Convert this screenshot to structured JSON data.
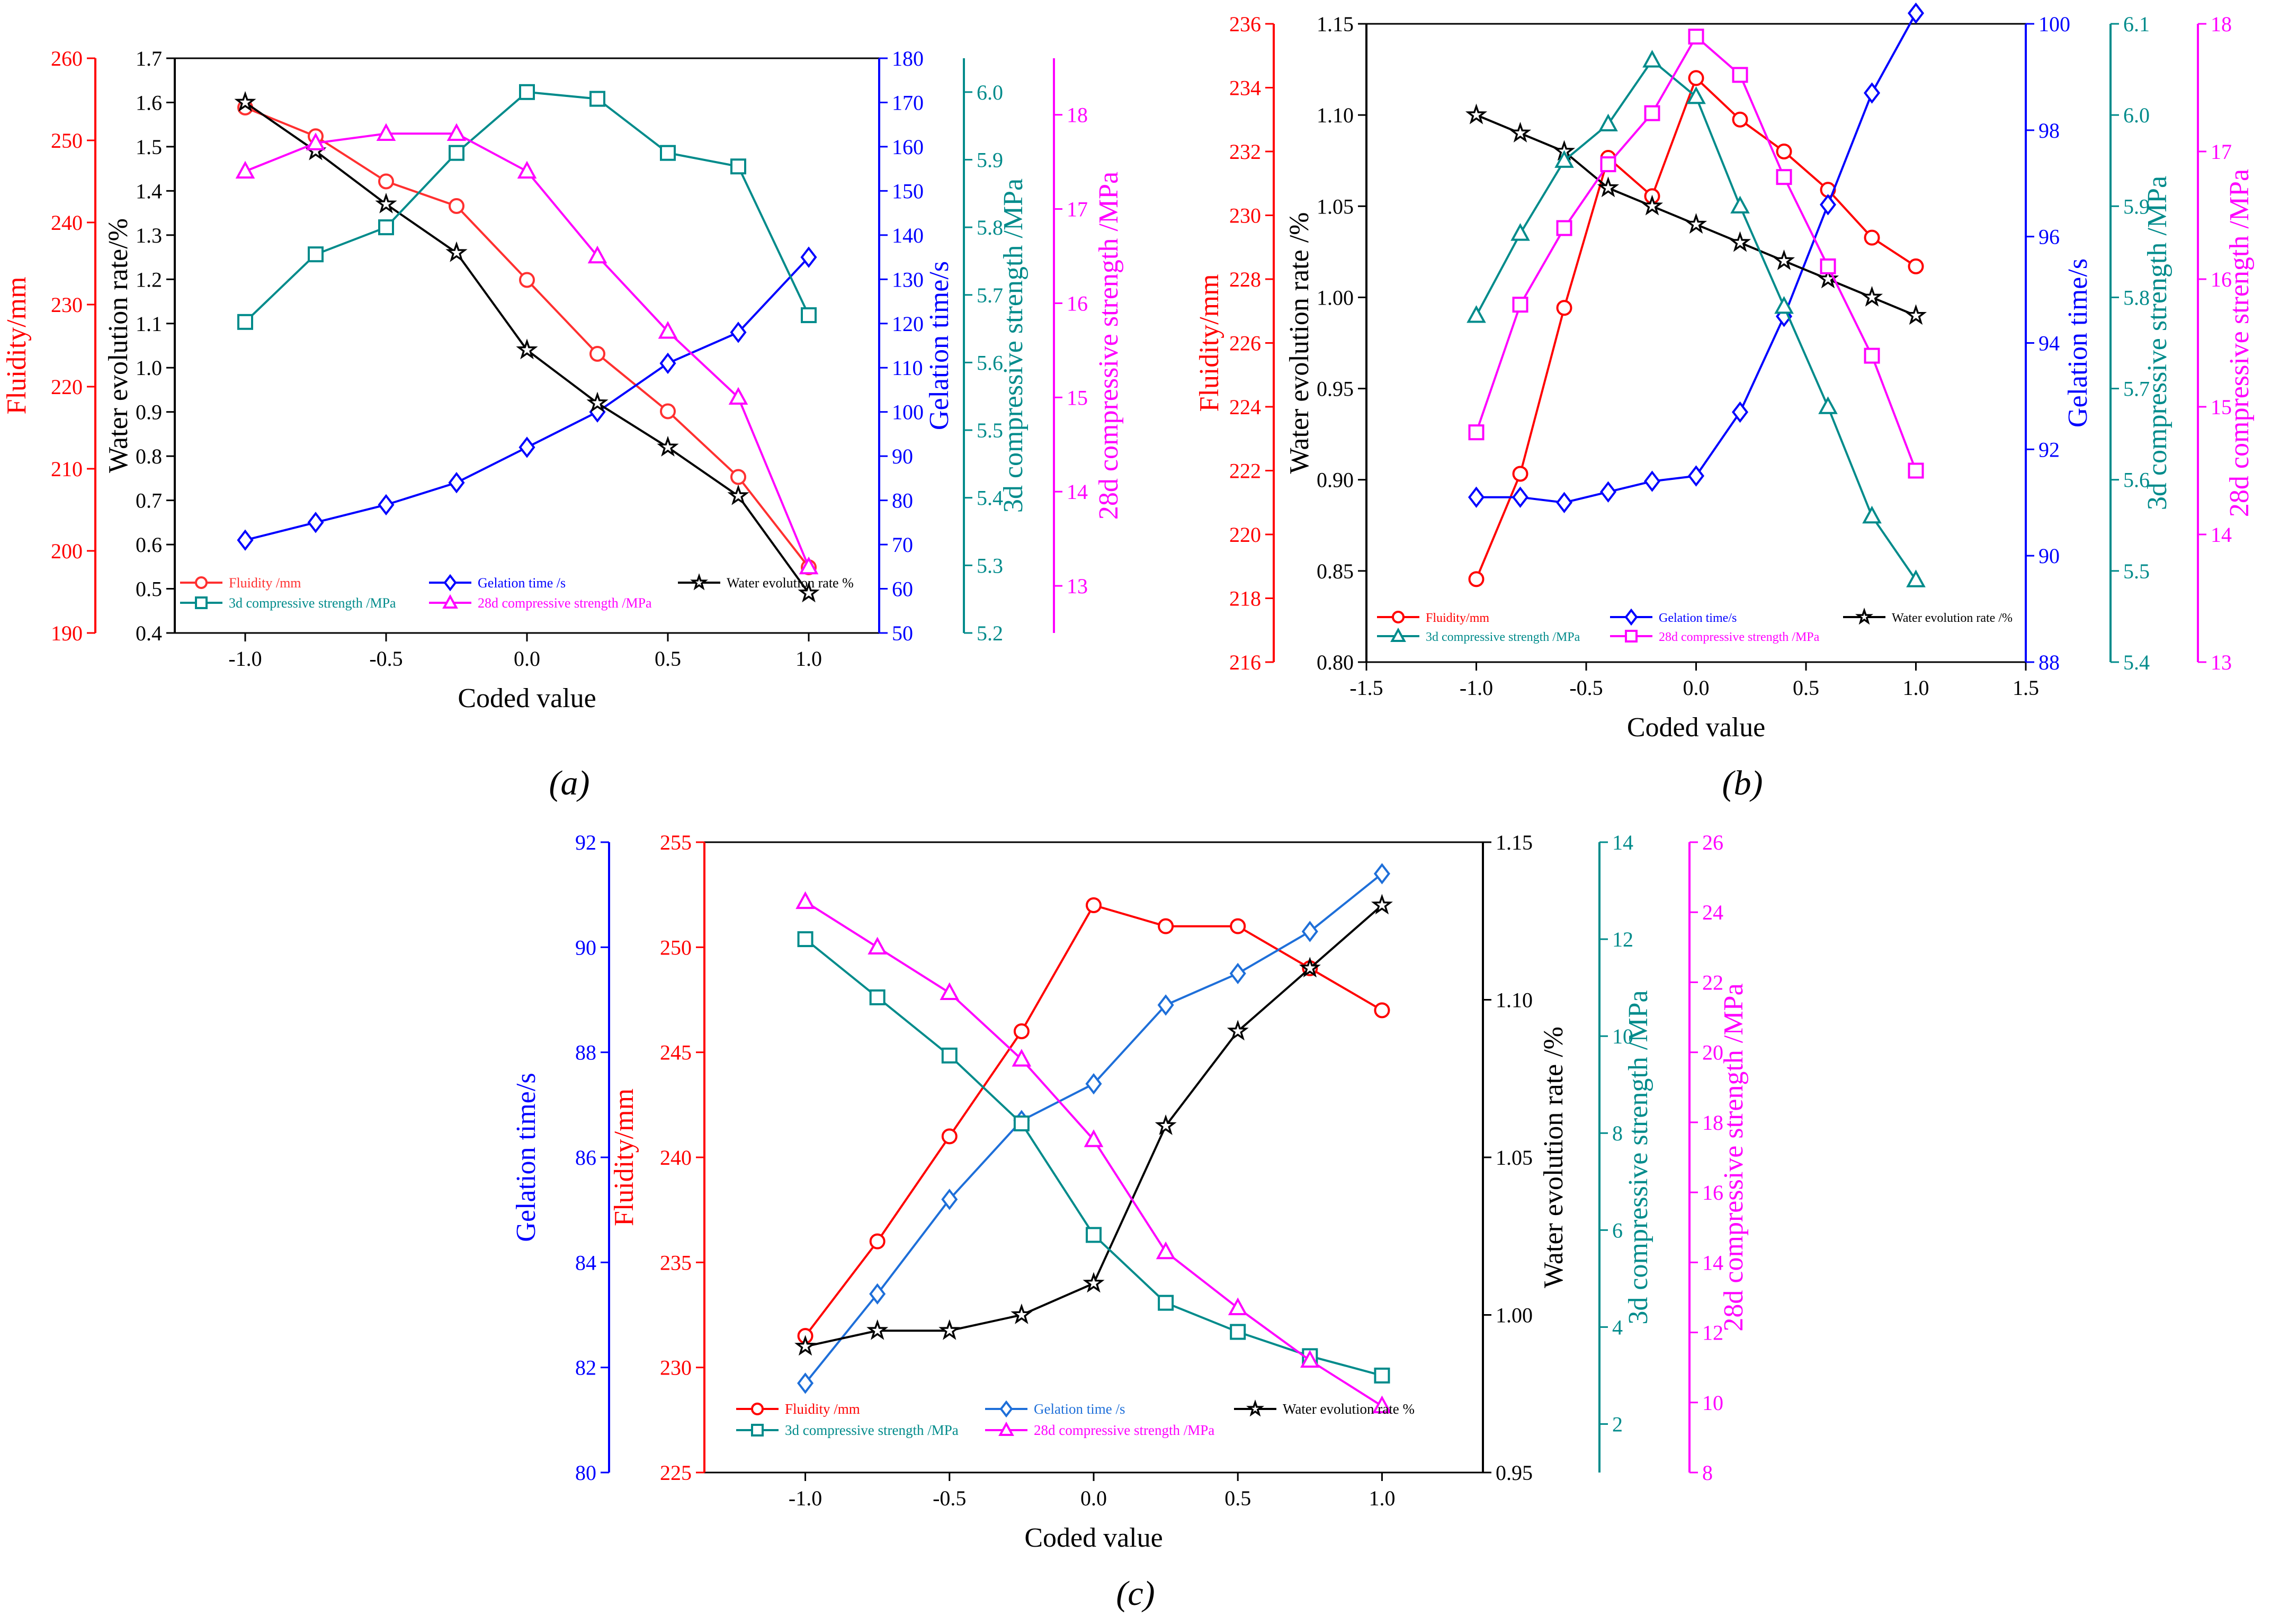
{
  "figure": {
    "panel_labels": [
      "(a)",
      "(b)",
      "(c)"
    ]
  },
  "chart_data": [
    {
      "type": "line",
      "panel": "(a)",
      "xlabel": "Coded value",
      "xlim": [
        -1.25,
        1.25
      ],
      "x_ticks": [
        "-1.0",
        "-0.5",
        "0.0",
        "0.5",
        "1.0"
      ],
      "x_tick_values": [
        -1,
        -0.5,
        0,
        0.5,
        1
      ],
      "x": [
        -1,
        -0.75,
        -0.5,
        -0.25,
        0,
        0.25,
        0.5,
        0.75,
        1
      ],
      "axes": [
        {
          "key": "fl",
          "label": "Fluidity/mm",
          "color": "#FF0000",
          "ylim": [
            190,
            260
          ],
          "ticks": [
            "190",
            "200",
            "210",
            "220",
            "230",
            "240",
            "250",
            "260"
          ]
        },
        {
          "key": "wr",
          "label": "Water evolution rate/%",
          "color": "#000000",
          "ylim": [
            0.4,
            1.7
          ],
          "ticks": [
            "0.4",
            "0.5",
            "0.6",
            "0.7",
            "0.8",
            "0.9",
            "1.0",
            "1.1",
            "1.2",
            "1.3",
            "1.4",
            "1.5",
            "1.6",
            "1.7"
          ]
        },
        {
          "key": "gt",
          "label": "Gelation time/s",
          "color": "#0000FF",
          "ylim": [
            50,
            180
          ],
          "ticks": [
            "50",
            "60",
            "70",
            "80",
            "90",
            "100",
            "110",
            "120",
            "130",
            "140",
            "150",
            "160",
            "170",
            "180"
          ]
        },
        {
          "key": "s3",
          "label": "3d compressive strength /MPa",
          "color": "#008B8B",
          "ylim": [
            5.2,
            6.05
          ],
          "ticks": [
            "5.2",
            "5.3",
            "5.4",
            "5.5",
            "5.6",
            "5.7",
            "5.8",
            "5.9",
            "6.0"
          ]
        },
        {
          "key": "s28",
          "label": "28d compressive strength /MPa",
          "color": "#FF00FF",
          "ylim": [
            12.5,
            18.6
          ],
          "ticks": [
            "13",
            "14",
            "15",
            "16",
            "17",
            "18"
          ]
        }
      ],
      "series": [
        {
          "name": "Fluidity /mm",
          "axis": "fl",
          "color": "#FF3030",
          "marker": "circle",
          "values": [
            254,
            250.5,
            245,
            242,
            233,
            224,
            217,
            209,
            198
          ]
        },
        {
          "name": "Gelation time /s",
          "axis": "gt",
          "color": "#0000FF",
          "marker": "diamond",
          "values": [
            71,
            75,
            79,
            84,
            92,
            100,
            111,
            118,
            135
          ]
        },
        {
          "name": "Water evolution rate %",
          "axis": "wr",
          "color": "#000000",
          "marker": "star",
          "values": [
            1.6,
            1.49,
            1.37,
            1.26,
            1.04,
            0.92,
            0.82,
            0.71,
            0.49
          ]
        },
        {
          "name": "3d compressive strength /MPa",
          "axis": "s3",
          "color": "#008B8B",
          "marker": "square",
          "values": [
            5.66,
            5.76,
            5.8,
            5.91,
            6.0,
            5.99,
            5.91,
            5.89,
            5.67
          ]
        },
        {
          "name": "28d compressive strength /MPa",
          "axis": "s28",
          "color": "#FF00FF",
          "marker": "triangle",
          "values": [
            17.4,
            17.7,
            17.8,
            17.8,
            17.4,
            16.5,
            15.7,
            15.0,
            13.2
          ]
        }
      ],
      "legend": {
        "rows": [
          [
            "Fluidity /mm",
            "Gelation time /s",
            "Water evolution rate %"
          ],
          [
            "3d compressive strength /MPa",
            "28d compressive strength /MPa"
          ]
        ]
      }
    },
    {
      "type": "line",
      "panel": "(b)",
      "xlabel": "Coded value",
      "xlim": [
        -1.5,
        1.5
      ],
      "x_ticks": [
        "-1.5",
        "-1.0",
        "-0.5",
        "0.0",
        "0.5",
        "1.0",
        "1.5"
      ],
      "x_tick_values": [
        -1.5,
        -1,
        -0.5,
        0,
        0.5,
        1,
        1.5
      ],
      "x": [
        -1,
        -0.8,
        -0.6,
        -0.4,
        -0.2,
        0,
        0.2,
        0.4,
        0.6,
        0.8,
        1
      ],
      "axes": [
        {
          "key": "fl",
          "label": "Fluidity/mm",
          "color": "#FF0000",
          "ylim": [
            216,
            236
          ],
          "ticks": [
            "216",
            "218",
            "220",
            "222",
            "224",
            "226",
            "228",
            "230",
            "232",
            "234",
            "236"
          ]
        },
        {
          "key": "wr",
          "label": "Water evolution rate /%",
          "color": "#000000",
          "ylim": [
            0.8,
            1.15
          ],
          "ticks": [
            "0.80",
            "0.85",
            "0.90",
            "0.95",
            "1.00",
            "1.05",
            "1.10",
            "1.15"
          ]
        },
        {
          "key": "gt",
          "label": "Gelation time/s",
          "color": "#0000FF",
          "ylim": [
            88,
            100
          ],
          "ticks": [
            "88",
            "90",
            "92",
            "94",
            "96",
            "98",
            "100"
          ]
        },
        {
          "key": "s3",
          "label": "3d compressive strength /MPa",
          "color": "#008B8B",
          "ylim": [
            5.4,
            6.1
          ],
          "ticks": [
            "5.4",
            "5.5",
            "5.6",
            "5.7",
            "5.8",
            "5.9",
            "6.0",
            "6.1"
          ]
        },
        {
          "key": "s28",
          "label": "28d compressive strength /MPa",
          "color": "#FF00FF",
          "ylim": [
            13,
            18
          ],
          "ticks": [
            "13",
            "14",
            "15",
            "16",
            "17",
            "18"
          ]
        }
      ],
      "series": [
        {
          "name": "Fluidity/mm",
          "axis": "fl",
          "color": "#FF0000",
          "marker": "circle",
          "values": [
            218.6,
            221.9,
            227.1,
            231.8,
            230.6,
            234.3,
            233.0,
            232.0,
            230.8,
            229.3,
            228.4
          ]
        },
        {
          "name": "Gelation time/s",
          "axis": "gt",
          "color": "#0000FF",
          "marker": "diamond",
          "values": [
            91.1,
            91.1,
            91.0,
            91.2,
            91.4,
            91.5,
            92.7,
            94.5,
            96.6,
            98.7,
            100.2
          ]
        },
        {
          "name": "Water evolution rate /%",
          "axis": "wr",
          "color": "#000000",
          "marker": "star",
          "values": [
            1.1,
            1.09,
            1.08,
            1.06,
            1.05,
            1.04,
            1.03,
            1.02,
            1.01,
            1.0,
            0.99
          ]
        },
        {
          "name": "3d compressive strength /MPa",
          "axis": "s3",
          "color": "#008B8B",
          "marker": "triangle",
          "values": [
            5.78,
            5.87,
            5.95,
            5.99,
            6.06,
            6.02,
            5.9,
            5.79,
            5.68,
            5.56,
            5.49
          ]
        },
        {
          "name": "28d compressive strength /MPa",
          "axis": "s28",
          "color": "#FF00FF",
          "marker": "square",
          "values": [
            14.8,
            15.8,
            16.4,
            16.9,
            17.3,
            17.9,
            17.6,
            16.8,
            16.1,
            15.4,
            14.5
          ]
        }
      ],
      "legend": {
        "rows": [
          [
            "Fluidity/mm",
            "Gelation time/s",
            "Water evolution rate /%"
          ],
          [
            "3d compressive strength /MPa",
            "28d compressive strength /MPa"
          ]
        ]
      }
    },
    {
      "type": "line",
      "panel": "(c)",
      "xlabel": "Coded value",
      "xlim": [
        -1.35,
        1.35
      ],
      "x_ticks": [
        "-1.0",
        "-0.5",
        "0.0",
        "0.5",
        "1.0"
      ],
      "x_tick_values": [
        -1,
        -0.5,
        0,
        0.5,
        1
      ],
      "x": [
        -1,
        -0.75,
        -0.5,
        -0.25,
        0,
        0.25,
        0.5,
        0.75,
        1
      ],
      "axes": [
        {
          "key": "gt",
          "label": "Gelation time/s",
          "color": "#0000FF",
          "ylim": [
            80,
            92
          ],
          "ticks": [
            "80",
            "82",
            "84",
            "86",
            "88",
            "90",
            "92"
          ]
        },
        {
          "key": "fl",
          "label": "Fluidity/mm",
          "color": "#FF0000",
          "ylim": [
            225,
            255
          ],
          "ticks": [
            "225",
            "230",
            "235",
            "240",
            "245",
            "250",
            "255"
          ]
        },
        {
          "key": "wr",
          "label": "Water evolution rate /%",
          "color": "#000000",
          "ylim": [
            0.95,
            1.15
          ],
          "ticks": [
            "0.95",
            "1.00",
            "1.05",
            "1.10",
            "1.15"
          ]
        },
        {
          "key": "s3",
          "label": "3d compressive strength /MPa",
          "color": "#008B8B",
          "ylim": [
            1,
            14
          ],
          "ticks": [
            "2",
            "4",
            "6",
            "8",
            "10",
            "12",
            "14"
          ]
        },
        {
          "key": "s28",
          "label": "28d compressive strength /MPa",
          "color": "#FF00FF",
          "ylim": [
            8,
            26
          ],
          "ticks": [
            "8",
            "10",
            "12",
            "14",
            "16",
            "18",
            "20",
            "22",
            "24",
            "26"
          ]
        }
      ],
      "series": [
        {
          "name": "Fluidity /mm",
          "axis": "fl",
          "color": "#FF0000",
          "marker": "circle",
          "values": [
            231.5,
            236,
            241,
            246,
            252,
            251,
            251,
            249,
            247
          ]
        },
        {
          "name": "Gelation time /s",
          "axis": "gt",
          "color": "#1E6FD9",
          "marker": "diamond",
          "values": [
            81.7,
            83.4,
            85.2,
            86.7,
            87.4,
            88.9,
            89.5,
            90.3,
            91.4
          ]
        },
        {
          "name": "Water evolution rate %",
          "axis": "wr",
          "color": "#000000",
          "marker": "star",
          "values": [
            0.99,
            0.995,
            0.995,
            1.0,
            1.01,
            1.06,
            1.09,
            1.11,
            1.13
          ]
        },
        {
          "name": "3d compressive strength /MPa",
          "axis": "s3",
          "color": "#008B8B",
          "marker": "square",
          "values": [
            12.0,
            10.8,
            9.6,
            8.2,
            5.9,
            4.5,
            3.9,
            3.4,
            3.0
          ]
        },
        {
          "name": "28d compressive strength /MPa",
          "axis": "s28",
          "color": "#FF00FF",
          "marker": "triangle",
          "values": [
            24.3,
            23.0,
            21.7,
            19.8,
            17.5,
            14.3,
            12.7,
            11.2,
            9.9
          ]
        }
      ],
      "legend": {
        "rows": [
          [
            "Fluidity /mm",
            "Gelation time /s",
            "Water evolution rate %"
          ],
          [
            "3d compressive strength /MPa",
            "28d compressive strength /MPa"
          ]
        ]
      }
    }
  ]
}
